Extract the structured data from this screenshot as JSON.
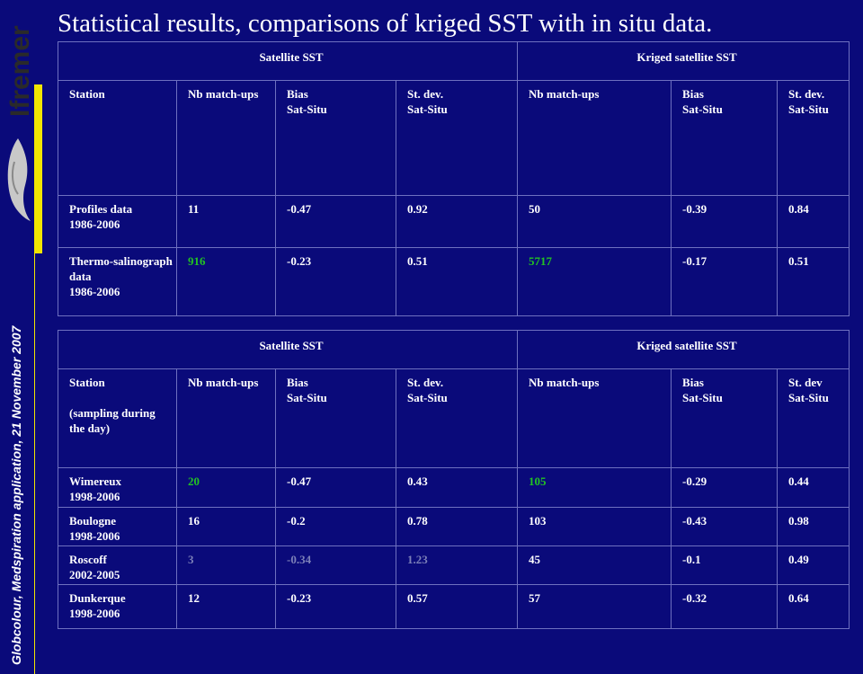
{
  "title": "Statistical results, comparisons of kriged SST with in situ data.",
  "sidebar": {
    "logo_text": "Ifremer",
    "caption": "Globcolour, Medspiration application, 21 November 2007"
  },
  "colors": {
    "background": "#0a0a7a",
    "accent_green": "#22c322",
    "dim_gray": "#7c80b8",
    "stripe_yellow": "#f2e600"
  },
  "table1": {
    "group_headers": [
      "Satellite SST",
      "Kriged satellite SST"
    ],
    "col_headers": {
      "station": "Station",
      "nb1": "Nb match-ups",
      "bias1_a": "Bias",
      "bias1_b": "Sat-Situ",
      "sd1_a": "St. dev.",
      "sd1_b": "Sat-Situ",
      "nb2": "Nb match-ups",
      "bias2_a": "Bias",
      "bias2_b": "Sat-Situ",
      "sd2": "St. dev. Sat-Situ"
    },
    "rows": [
      {
        "station": "Profiles data",
        "period": "1986-2006",
        "nb1": "11",
        "bias1": "-0.47",
        "sd1": "0.92",
        "nb2": "50",
        "bias2": "-0.39",
        "sd2": "0.84"
      },
      {
        "station": "Thermo-salinograph data",
        "period": "1986-2006",
        "nb1": "916",
        "bias1": "-0.23",
        "sd1": "0.51",
        "nb2": "5717",
        "bias2": "-0.17",
        "sd2": "0.51"
      }
    ]
  },
  "table2": {
    "group_headers": [
      "Satellite SST",
      "Kriged satellite SST"
    ],
    "col_headers": {
      "station": "Station",
      "station_note": "(sampling during the day)",
      "nb1": "Nb match-ups",
      "bias1_a": "Bias",
      "bias1_b": "Sat-Situ",
      "sd1_a": "St. dev.",
      "sd1_b": "Sat-Situ",
      "nb2": "Nb match-ups",
      "bias2_a": "Bias",
      "bias2_b": "Sat-Situ",
      "sd2": "St. dev Sat-Situ"
    },
    "rows": [
      {
        "station": "Wimereux",
        "period": "1998-2006",
        "nb1": "20",
        "bias1": "-0.47",
        "sd1": "0.43",
        "nb2": "105",
        "bias2": "-0.29",
        "sd2": "0.44"
      },
      {
        "station": "Boulogne",
        "period": "1998-2006",
        "nb1": "16",
        "bias1": "-0.2",
        "sd1": "0.78",
        "nb2": "103",
        "bias2": "-0.43",
        "sd2": "0.98"
      },
      {
        "station": "Roscoff",
        "period": "2002-2005",
        "nb1": "3",
        "bias1": "-0.34",
        "sd1": "1.23",
        "nb2": "45",
        "bias2": "-0.1",
        "sd2": "0.49"
      },
      {
        "station": "Dunkerque",
        "period": "1998-2006",
        "nb1": "12",
        "bias1": "-0.23",
        "sd1": "0.57",
        "nb2": "57",
        "bias2": "-0.32",
        "sd2": "0.64"
      }
    ]
  }
}
